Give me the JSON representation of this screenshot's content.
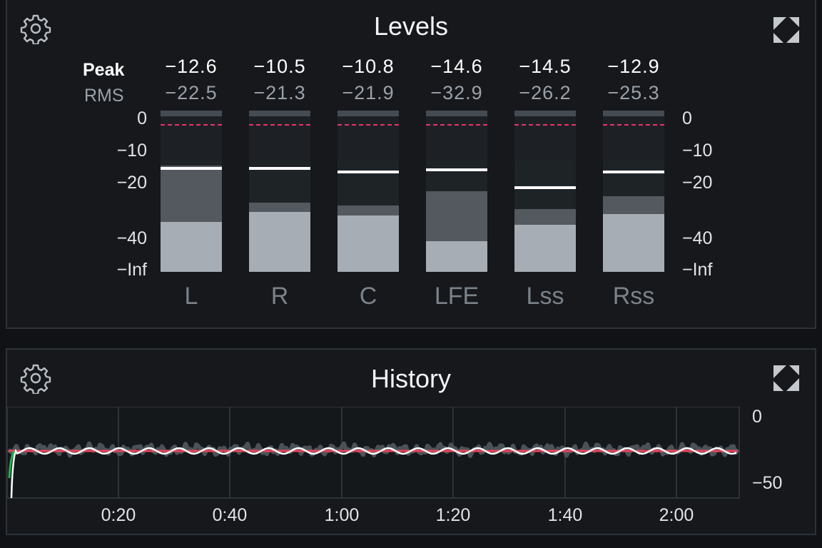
{
  "levels": {
    "title": "Levels",
    "peak_label": "Peak",
    "rms_label": "RMS",
    "scale_labels": [
      "0",
      "−10",
      "−20",
      "−40",
      "−Inf"
    ],
    "channels": [
      {
        "name": "L",
        "peak": "−12.6",
        "rms": "−22.5",
        "peak_level": 0.66,
        "rms_level": 0.31,
        "hold_level": 0.65
      },
      {
        "name": "R",
        "peak": "−10.5",
        "rms": "−21.3",
        "peak_level": 0.43,
        "rms_level": 0.37,
        "hold_level": 0.65
      },
      {
        "name": "C",
        "peak": "−10.8",
        "rms": "−21.9",
        "peak_level": 0.41,
        "rms_level": 0.35,
        "hold_level": 0.63
      },
      {
        "name": "LFE",
        "peak": "−14.6",
        "rms": "−32.9",
        "peak_level": 0.5,
        "rms_level": 0.19,
        "hold_level": 0.64
      },
      {
        "name": "Lss",
        "peak": "−14.5",
        "rms": "−26.2",
        "peak_level": 0.39,
        "rms_level": 0.29,
        "hold_level": 0.53
      },
      {
        "name": "Rss",
        "peak": "−12.9",
        "rms": "−25.3",
        "peak_level": 0.47,
        "rms_level": 0.36,
        "hold_level": 0.63
      }
    ],
    "colors": {
      "rms": "#a7adb4",
      "peak": "#54595f",
      "hold": "#ffffff",
      "target": "#e8336a"
    }
  },
  "history": {
    "title": "History",
    "scale_labels": [
      "0",
      "−50"
    ],
    "time_labels": [
      "0:20",
      "0:40",
      "1:00",
      "1:20",
      "1:40",
      "2:00"
    ],
    "colors": {
      "loudness": "#ffffff",
      "target": "#e8445a",
      "peak": "#4a5258",
      "start": "#22b14c"
    }
  }
}
